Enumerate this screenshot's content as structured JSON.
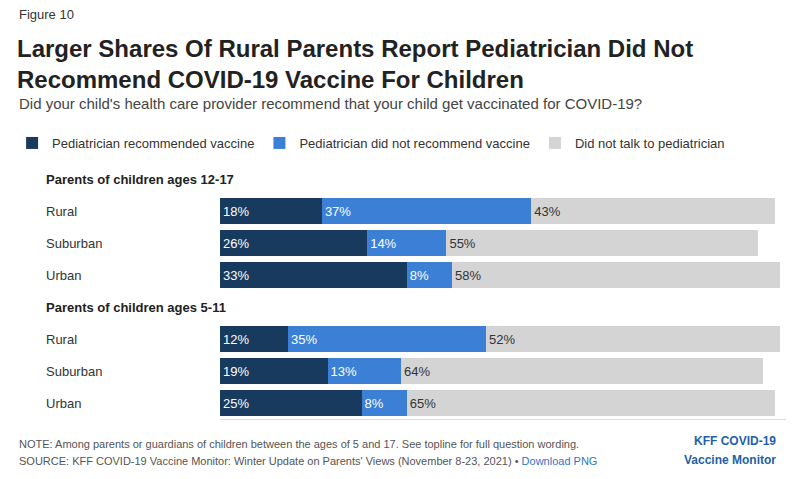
{
  "chart_data": {
    "type": "bar",
    "orientation": "horizontal",
    "stacked": true,
    "data_labels": true,
    "grid": false,
    "legend": "top-left",
    "tick_labels": "y",
    "figure_label": "Figure 10",
    "title": "Larger Shares Of Rural Parents Report Pediatrician Did Not Recommend COVID-19 Vaccine For Children",
    "subtitle": "Did your child's health care provider recommend that your child get vaccinated for COVID-19?",
    "category_groups": [
      "Parents of children ages 12-17",
      "Parents of children ages 12-17",
      "Parents of children ages 12-17",
      "Parents of children ages 5-11",
      "Parents of children ages 5-11",
      "Parents of children ages 5-11"
    ],
    "categories": [
      "Rural",
      "Suburban",
      "Urban",
      "Rural",
      "Suburban",
      "Urban"
    ],
    "xlim": [
      0,
      100
    ],
    "series": [
      {
        "name": "Pediatrician recommended vaccine",
        "color": "#183a5e",
        "values": [
          18,
          26,
          33,
          12,
          19,
          25
        ],
        "value_labels": [
          "18%",
          "26%",
          "33%",
          "12%",
          "19%",
          "25%"
        ]
      },
      {
        "name": "Pediatrician did not recommend vaccine",
        "color": "#3b80d6",
        "values": [
          37,
          14,
          8,
          35,
          13,
          8
        ],
        "value_labels": [
          "37%",
          "14%",
          "8%",
          "35%",
          "13%",
          "8%"
        ]
      },
      {
        "name": "Did not talk to pediatrician",
        "color": "#d4d4d4",
        "values": [
          43,
          55,
          58,
          52,
          64,
          65
        ],
        "value_labels": [
          "43%",
          "55%",
          "58%",
          "52%",
          "64%",
          "65%"
        ]
      }
    ],
    "note": "NOTE: Among parents or guardians of children between the ages of 5 and 17. See topline for full question wording.",
    "source": "SOURCE: KFF COVID-19 Vaccine Monitor: Winter Update on Parents' Views (November 8-23, 2021) •",
    "source_link": "Download PNG",
    "logo": [
      "KFF COVID-19",
      "Vaccine Monitor"
    ]
  }
}
